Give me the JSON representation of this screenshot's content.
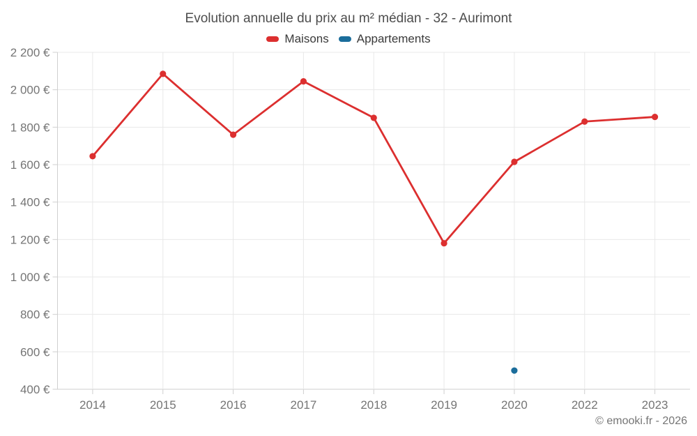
{
  "chart_data": {
    "type": "line",
    "title": "Evolution annuelle du prix au m² médian - 32 - Aurimont",
    "categories": [
      "2014",
      "2015",
      "2016",
      "2017",
      "2018",
      "2019",
      "2020",
      "2022",
      "2023"
    ],
    "series": [
      {
        "name": "Maisons",
        "color": "#dc2f2f",
        "values": [
          1645,
          2085,
          1760,
          2045,
          1850,
          1180,
          1615,
          1830,
          1855
        ]
      },
      {
        "name": "Appartements",
        "color": "#1b6d9b",
        "values": [
          null,
          null,
          null,
          null,
          null,
          null,
          500,
          null,
          null
        ]
      }
    ],
    "ylim": [
      400,
      2200
    ],
    "ytick_step": 200,
    "ytick_suffix": " €",
    "grid": true,
    "legend_position": "top"
  },
  "footer": {
    "copyright": "© emooki.fr - 2026"
  }
}
